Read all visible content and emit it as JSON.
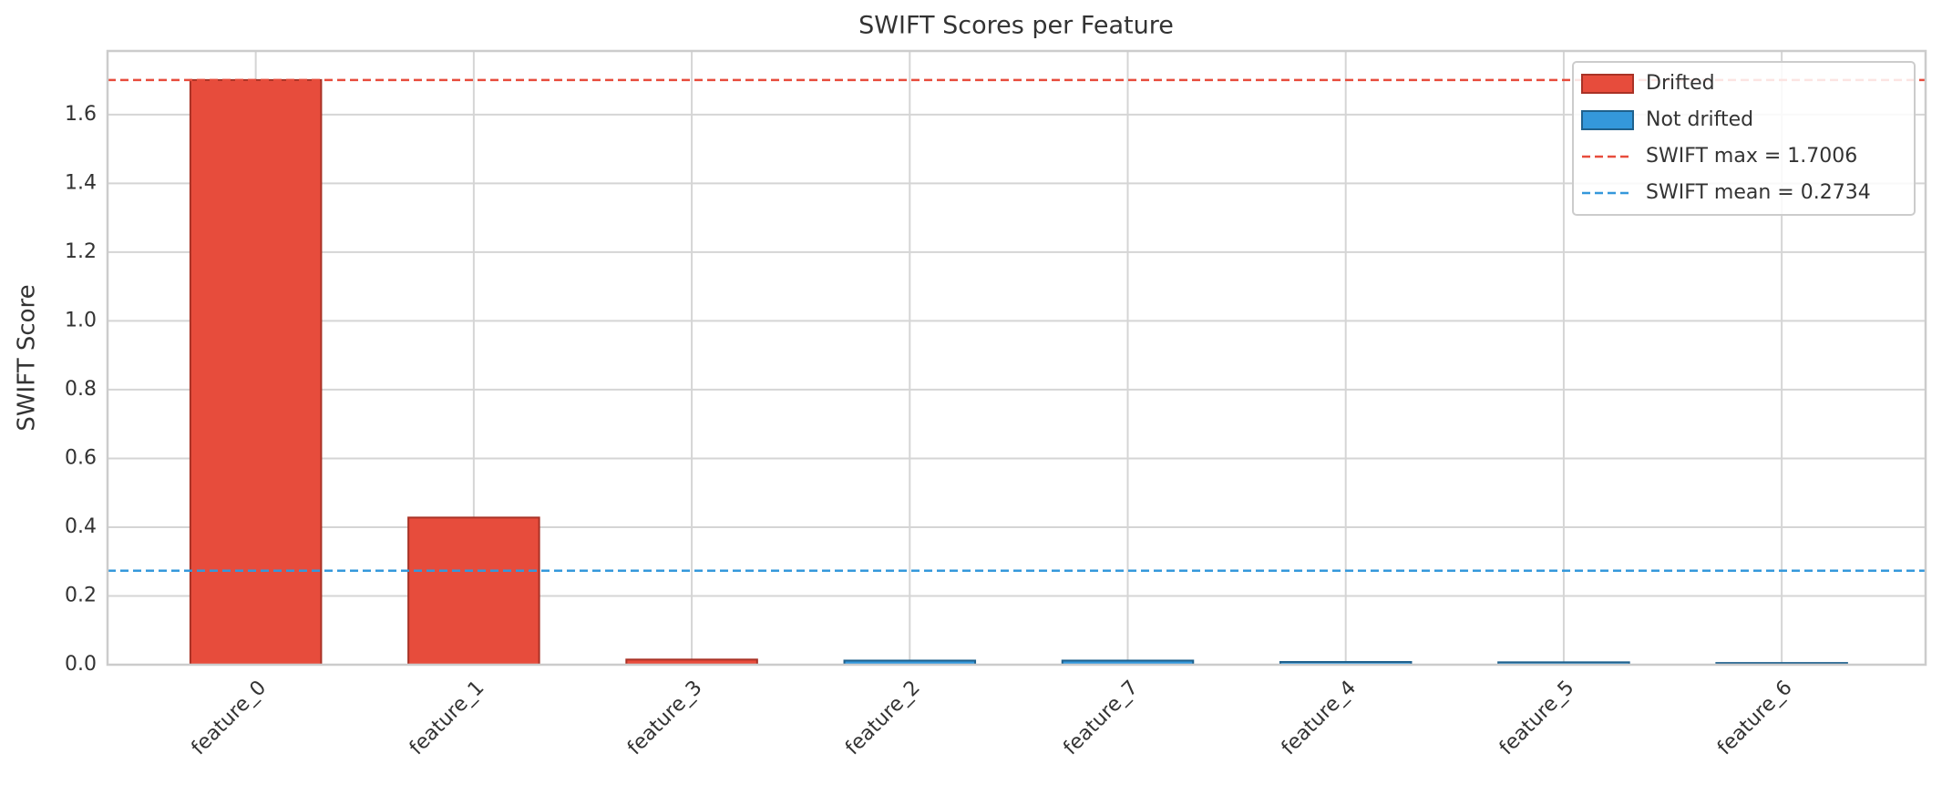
{
  "chart_data": {
    "type": "bar",
    "title": "SWIFT Scores per Feature",
    "y_label": "SWIFT Score",
    "categories": [
      "feature_0",
      "feature_1",
      "feature_3",
      "feature_2",
      "feature_7",
      "feature_4",
      "feature_5",
      "feature_6"
    ],
    "series": [
      {
        "name": "Drifted",
        "color": "#e74c3c",
        "edge": "#a93226",
        "values": [
          1.7006,
          0.428,
          0.015,
          null,
          null,
          null,
          null,
          null
        ]
      },
      {
        "name": "Not drifted",
        "color": "#3498db",
        "edge": "#1f618d",
        "values": [
          null,
          null,
          null,
          0.012,
          0.012,
          0.008,
          0.007,
          0.005
        ]
      }
    ],
    "reference_lines": [
      {
        "label": "SWIFT max = 1.7006",
        "value": 1.7006,
        "color": "#e74c3c"
      },
      {
        "label": "SWIFT mean = 0.2734",
        "value": 0.2734,
        "color": "#3498db"
      }
    ],
    "ylim": [
      0,
      1.785
    ],
    "yticks": [
      {
        "value": 0,
        "label": "0.0"
      },
      0.2,
      0.4,
      0.6,
      0.8,
      {
        "value": 1,
        "label": "1.0"
      },
      1.2,
      1.4,
      1.6
    ],
    "grid": true,
    "legend": "upper right"
  }
}
